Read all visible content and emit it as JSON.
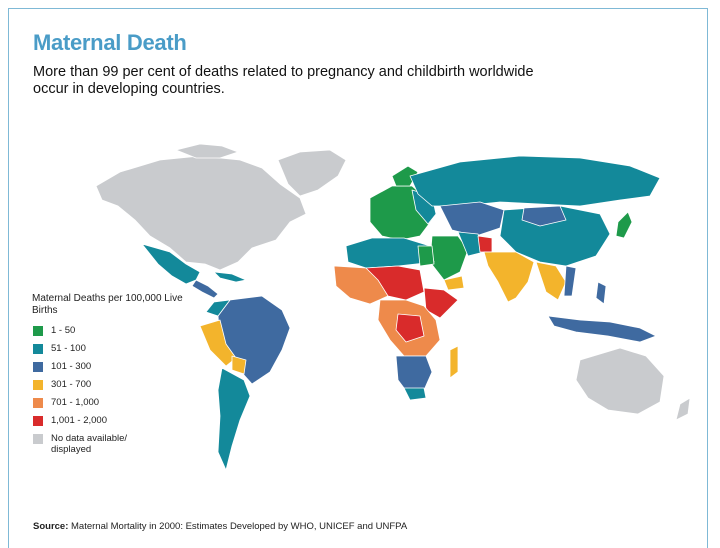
{
  "title": "Maternal Death",
  "subtitle": "More than 99 per cent of deaths related to pregnancy and childbirth worldwide occur in developing countries.",
  "legend": {
    "title": "Maternal Deaths per 100,000 Live Births",
    "items": [
      {
        "label": "1 - 50",
        "color": "#1e9a4a"
      },
      {
        "label": "51 - 100",
        "color": "#13899a"
      },
      {
        "label": "101 - 300",
        "color": "#3f6aa0"
      },
      {
        "label": "301 - 700",
        "color": "#f3b42c"
      },
      {
        "label": "701 - 1,000",
        "color": "#ee8a4b"
      },
      {
        "label": "1,001 - 2,000",
        "color": "#d92b2b"
      },
      {
        "label": "No data available/ displayed",
        "color": "#c9cbce"
      }
    ]
  },
  "source": {
    "label": "Source:",
    "text": "Maternal Mortality in 2000: Estimates Developed by WHO, UNICEF and UNFPA"
  },
  "colors": {
    "accent": "#4a9cc7",
    "border": "#7fb9d6"
  }
}
